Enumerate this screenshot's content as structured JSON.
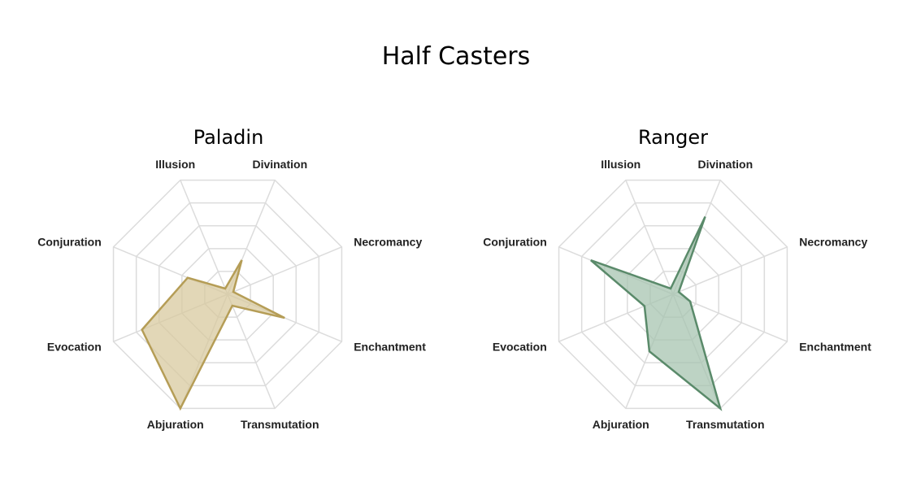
{
  "title": "Half Casters",
  "chart_data": [
    {
      "type": "radar",
      "title": "Paladin",
      "axes": [
        "Divination",
        "Necromancy",
        "Enchantment",
        "Transmutation",
        "Abjuration",
        "Evocation",
        "Conjuration",
        "Illusion"
      ],
      "values": [
        0.3,
        0.05,
        0.5,
        0.1,
        1.0,
        0.75,
        0.35,
        0.05
      ],
      "range": [
        0,
        1
      ],
      "levels": 5,
      "grid": true,
      "color": "#b59d56",
      "fill": "#d8c99f"
    },
    {
      "type": "radar",
      "title": "Ranger",
      "axes": [
        "Divination",
        "Necromancy",
        "Enchantment",
        "Transmutation",
        "Abjuration",
        "Evocation",
        "Conjuration",
        "Illusion"
      ],
      "values": [
        0.68,
        0.05,
        0.15,
        1.0,
        0.5,
        0.25,
        0.72,
        0.05
      ],
      "range": [
        0,
        1
      ],
      "levels": 5,
      "grid": true,
      "color": "#5a8a6a",
      "fill": "#a7c4b0"
    }
  ]
}
